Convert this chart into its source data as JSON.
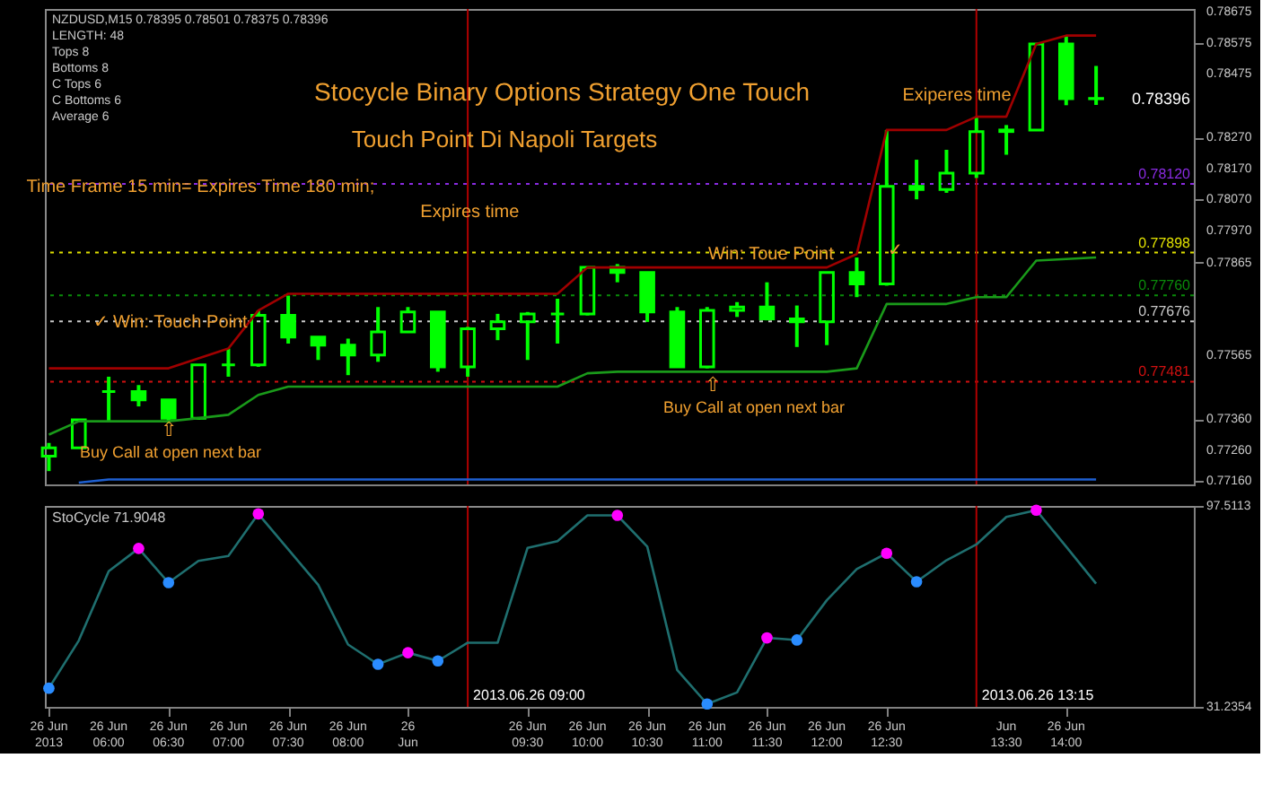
{
  "chart_data": [
    {
      "type": "candlestick",
      "title": "Stocycle Binary Options Strategy One Touch",
      "subtitle": "Touch Point Di Napoli Targets",
      "annotations": [
        "NZDUSD,M15  0.78395 0.78501 0.78375 0.78396",
        "LENGTH: 48",
        "Tops 8",
        "Bottoms 8",
        "C Tops 6",
        "C Bottoms 6",
        "Average 6",
        {
          "text": "Time Frame 15 min= Expires Time 180 min;",
          "x": "2013-06-26T06:46",
          "y": 0.7811
        },
        {
          "text": "Expires time",
          "x": "2013-06-26T09:01",
          "y": 0.7803
        },
        {
          "text": "✓  Win: Touch Point",
          "x": "2013-06-26T06:31",
          "y": 0.77674
        },
        {
          "text": "Win: Toue Point",
          "x": "2013-06-26T11:32",
          "y": 0.77893
        },
        {
          "text": "✓",
          "x": "2013-06-26T12:34",
          "y": 0.77904
        },
        "Exiperes time",
        "⇧",
        "Buy Call at open next bar",
        "⇧",
        "Buy Call at open next bar",
        "0.78396"
      ],
      "color": "#00ff00",
      "x": [
        "2013-06-26T05:30",
        "2013-06-26T05:45",
        "2013-06-26T06:00",
        "2013-06-26T06:15",
        "2013-06-26T06:30",
        "2013-06-26T06:45",
        "2013-06-26T07:00",
        "2013-06-26T07:15",
        "2013-06-26T07:30",
        "2013-06-26T07:45",
        "2013-06-26T08:00",
        "2013-06-26T08:15",
        "2013-06-26T08:30",
        "2013-06-26T08:45",
        "2013-06-26T09:00",
        "2013-06-26T09:15",
        "2013-06-26T09:30",
        "2013-06-26T09:45",
        "2013-06-26T10:00",
        "2013-06-26T10:15",
        "2013-06-26T10:30",
        "2013-06-26T10:45",
        "2013-06-26T11:00",
        "2013-06-26T11:15",
        "2013-06-26T11:30",
        "2013-06-26T11:45",
        "2013-06-26T12:00",
        "2013-06-26T12:15",
        "2013-06-26T12:30",
        "2013-06-26T12:45",
        "2013-06-26T13:00",
        "2013-06-26T13:15",
        "2013-06-26T13:30",
        "2013-06-26T13:45",
        "2013-06-26T14:00",
        "2013-06-26T14:15"
      ],
      "ohlc": [
        [
          0.7724,
          0.77283,
          0.77192,
          0.77267
        ],
        [
          0.77267,
          0.77358,
          0.77267,
          0.77358
        ],
        [
          0.77449,
          0.77497,
          0.77353,
          0.77449
        ],
        [
          0.77449,
          0.7747,
          0.77401,
          0.77422
        ],
        [
          0.77422,
          0.77422,
          0.77347,
          0.77363
        ],
        [
          0.77363,
          0.77535,
          0.77358,
          0.77535
        ],
        [
          0.77535,
          0.77588,
          0.77497,
          0.77535
        ],
        [
          0.77535,
          0.77711,
          0.77529,
          0.77695
        ],
        [
          0.77695,
          0.77759,
          0.77604,
          0.77625
        ],
        [
          0.77625,
          0.77625,
          0.77551,
          0.77599
        ],
        [
          0.77599,
          0.7762,
          0.77502,
          0.77567
        ],
        [
          0.77567,
          0.77722,
          0.77545,
          0.77642
        ],
        [
          0.77642,
          0.77722,
          0.77642,
          0.77706
        ],
        [
          0.77706,
          0.77706,
          0.77513,
          0.77529
        ],
        [
          0.77529,
          0.77658,
          0.77497,
          0.77652
        ],
        [
          0.77652,
          0.777,
          0.77615,
          0.77674
        ],
        [
          0.77674,
          0.77706,
          0.77551,
          0.777
        ],
        [
          0.777,
          0.77749,
          0.77604,
          0.777
        ],
        [
          0.777,
          0.7785,
          0.77695,
          0.7785
        ],
        [
          0.7785,
          0.77861,
          0.77802,
          0.77834
        ],
        [
          0.77834,
          0.77834,
          0.77674,
          0.77706
        ],
        [
          0.77706,
          0.77722,
          0.77529,
          0.77529
        ],
        [
          0.77529,
          0.77722,
          0.77524,
          0.77711
        ],
        [
          0.77711,
          0.77738,
          0.7769,
          0.77722
        ],
        [
          0.77722,
          0.77802,
          0.77679,
          0.77684
        ],
        [
          0.77684,
          0.77727,
          0.77593,
          0.77674
        ],
        [
          0.77674,
          0.77834,
          0.77599,
          0.77834
        ],
        [
          0.77834,
          0.77882,
          0.77754,
          0.77797
        ],
        [
          0.77797,
          0.78294,
          0.77791,
          0.78112
        ],
        [
          0.78112,
          0.78198,
          0.7807,
          0.78102
        ],
        [
          0.78102,
          0.7823,
          0.78091,
          0.78155
        ],
        [
          0.78155,
          0.78337,
          0.78139,
          0.78289
        ],
        [
          0.78289,
          0.7831,
          0.78214,
          0.78294
        ],
        [
          0.78294,
          0.78572,
          0.78294,
          0.78572
        ],
        [
          0.78572,
          0.78599,
          0.78374,
          0.78395
        ],
        [
          0.78395,
          0.78501,
          0.78375,
          0.78396
        ]
      ],
      "series": [
        {
          "type": "line",
          "color": "#a00000",
          "values": [
            0.77524,
            0.77524,
            0.77524,
            0.77524,
            0.77524,
            0.77556,
            0.77588,
            0.77711,
            0.77765,
            0.77765,
            0.77765,
            0.77765,
            0.77765,
            0.77765,
            0.77765,
            0.77765,
            0.77765,
            0.77765,
            0.7785,
            0.7785,
            0.7785,
            0.7785,
            0.7785,
            0.7785,
            0.7785,
            0.7785,
            0.7785,
            0.77893,
            0.78294,
            0.78294,
            0.78294,
            0.78337,
            0.78337,
            0.78572,
            0.78599,
            0.78599
          ]
        },
        {
          "type": "line",
          "color": "#1a9a1a",
          "values": [
            0.7731,
            0.77353,
            0.77353,
            0.77353,
            0.77353,
            0.77363,
            0.77374,
            0.77438,
            0.77465,
            0.77465,
            0.77465,
            0.77465,
            0.77465,
            0.77465,
            0.77465,
            0.77465,
            0.77465,
            0.77465,
            0.77508,
            0.77513,
            0.77513,
            0.77513,
            0.77513,
            0.77513,
            0.77513,
            0.77513,
            0.77513,
            0.77524,
            0.77732,
            0.77732,
            0.77732,
            0.77754,
            0.77754,
            0.77872,
            0.77877,
            0.77882
          ]
        },
        {
          "type": "line",
          "color": "#1e5fd0",
          "values": [
            null,
            0.77155,
            0.77165,
            0.77165,
            0.77165,
            0.77165,
            0.77165,
            0.77165,
            0.77165,
            0.77165,
            0.77165,
            0.77165,
            0.77165,
            0.77165,
            0.77165,
            0.77165,
            0.77165,
            0.77165,
            0.77165,
            0.77165,
            0.77165,
            0.77165,
            0.77165,
            0.77165,
            0.77165,
            0.77165,
            0.77165,
            0.77165,
            0.77165,
            0.77165,
            0.77165,
            0.77165,
            0.77165,
            0.77165,
            0.77165,
            0.77165
          ]
        }
      ],
      "ref_lines": [
        {
          "axis": "y",
          "value": 0.7812,
          "label": "0.78120",
          "color": "#8a2be2",
          "line_style": "dotted"
        },
        {
          "axis": "y",
          "value": 0.77898,
          "label": "0.77898",
          "color": "#e0e000",
          "line_style": "dotted"
        },
        {
          "axis": "y",
          "value": 0.7776,
          "label": "0.77760",
          "color": "#0a8a0a",
          "line_style": "dotted"
        },
        {
          "axis": "y",
          "value": 0.77676,
          "label": "0.77676",
          "color": "#c8c8c8",
          "line_style": "dotted"
        },
        {
          "axis": "y",
          "value": 0.77481,
          "label": "0.77481",
          "color": "#d01010",
          "line_style": "dotted"
        },
        {
          "axis": "x",
          "value": "2013-06-26T09:00",
          "color": "#b00000",
          "line_style": "solid"
        },
        {
          "axis": "x",
          "value": "2013-06-26T13:15",
          "color": "#b00000",
          "line_style": "solid"
        }
      ],
      "xlim": [
        "2013-06-26T05:28",
        "2013-06-26T15:04"
      ],
      "ylim": [
        0.77149,
        0.78685
      ],
      "yticks": [
        {
          "value": 0.7716,
          "label": "0.77160"
        },
        {
          "value": 0.7726,
          "label": "0.77260"
        },
        {
          "value": 0.7736,
          "label": "0.77360"
        },
        0.77565,
        0.77865,
        {
          "value": 0.7797,
          "label": "0.77970"
        },
        {
          "value": 0.7807,
          "label": "0.78070"
        },
        {
          "value": 0.7817,
          "label": "0.78170"
        },
        {
          "value": 0.7827,
          "label": "0.78270"
        },
        0.78475,
        0.78575,
        0.78675
      ],
      "tick_labels": "y"
    },
    {
      "type": "line",
      "title": "StoCycle 71.9048",
      "x": [
        "2013-06-26T05:30",
        "2013-06-26T05:45",
        "2013-06-26T06:00",
        "2013-06-26T06:15",
        "2013-06-26T06:30",
        "2013-06-26T06:45",
        "2013-06-26T07:00",
        "2013-06-26T07:15",
        "2013-06-26T07:30",
        "2013-06-26T07:45",
        "2013-06-26T08:00",
        "2013-06-26T08:15",
        "2013-06-26T08:30",
        "2013-06-26T08:45",
        "2013-06-26T09:00",
        "2013-06-26T09:15",
        "2013-06-26T09:30",
        "2013-06-26T09:45",
        "2013-06-26T10:00",
        "2013-06-26T10:15",
        "2013-06-26T10:30",
        "2013-06-26T10:45",
        "2013-06-26T11:00",
        "2013-06-26T11:15",
        "2013-06-26T11:30",
        "2013-06-26T11:45",
        "2013-06-26T12:00",
        "2013-06-26T12:15",
        "2013-06-26T12:30",
        "2013-06-26T12:45",
        "2013-06-26T13:00",
        "2013-06-26T13:15",
        "2013-06-26T13:30",
        "2013-06-26T13:45",
        "2013-06-26T14:00",
        "2013-06-26T14:15"
      ],
      "series": [
        {
          "type": "line",
          "color": "#1f6f6f",
          "values": [
            37.4,
            53.1,
            76.0,
            83.5,
            72.2,
            79.4,
            81.0,
            94.9,
            83.2,
            71.5,
            51.8,
            45.3,
            49.1,
            46.4,
            52.4,
            52.4,
            83.7,
            85.9,
            94.4,
            94.4,
            84.1,
            43.4,
            32.2,
            36.0,
            54.0,
            53.3,
            66.4,
            76.7,
            81.9,
            72.5,
            79.6,
            84.8,
            93.9,
            96.1,
            84.1,
            71.9
          ]
        },
        {
          "type": "scatter",
          "color": "#ff00ff",
          "marker": "circle",
          "values": [
            null,
            null,
            null,
            83.5,
            null,
            null,
            null,
            94.9,
            null,
            null,
            null,
            null,
            49.1,
            null,
            null,
            null,
            null,
            null,
            null,
            94.4,
            null,
            null,
            null,
            null,
            54.0,
            null,
            null,
            null,
            81.9,
            null,
            null,
            null,
            null,
            96.1,
            null,
            null
          ]
        },
        {
          "type": "scatter",
          "color": "#2a8cff",
          "marker": "circle",
          "values": [
            37.4,
            null,
            null,
            null,
            72.2,
            null,
            null,
            null,
            null,
            null,
            null,
            45.3,
            null,
            46.4,
            null,
            null,
            null,
            null,
            null,
            null,
            null,
            null,
            32.2,
            null,
            null,
            53.3,
            null,
            null,
            null,
            72.5,
            null,
            null,
            null,
            null,
            null,
            null
          ]
        }
      ],
      "ref_lines": [
        {
          "axis": "x",
          "value": "2013-06-26T09:00",
          "label": "2013.06.26 09:00",
          "color": "#b00000",
          "line_style": "solid"
        },
        {
          "axis": "x",
          "value": "2013-06-26T13:15",
          "label": "2013.06.26 13:15",
          "color": "#b00000",
          "line_style": "solid"
        }
      ],
      "xlim": [
        "2013-06-26T05:28",
        "2013-06-26T15:04"
      ],
      "xticks": [
        {
          "value": "2013-06-26T05:30",
          "label": "26 Jun 2013"
        },
        {
          "value": "2013-06-26T06:00",
          "label": "26 Jun 06:00"
        },
        {
          "value": "2013-06-26T06:30",
          "label": "26 Jun 06:30"
        },
        {
          "value": "2013-06-26T07:00",
          "label": "26 Jun 07:00"
        },
        {
          "value": "2013-06-26T07:30",
          "label": "26 Jun 07:30"
        },
        {
          "value": "2013-06-26T08:00",
          "label": "26 Jun 08:00"
        },
        {
          "value": "2013-06-26T08:30",
          "label": "26 Jun"
        },
        {
          "value": "2013-06-26T09:00",
          "label": null
        },
        {
          "value": "2013-06-26T09:30",
          "label": "26 Jun 09:30"
        },
        {
          "value": "2013-06-26T10:00",
          "label": "26 Jun 10:00"
        },
        {
          "value": "2013-06-26T10:30",
          "label": "26 Jun 10:30"
        },
        {
          "value": "2013-06-26T11:00",
          "label": "26 Jun 11:00"
        },
        {
          "value": "2013-06-26T11:30",
          "label": "26 Jun 11:30"
        },
        {
          "value": "2013-06-26T12:00",
          "label": "26 Jun 12:00"
        },
        {
          "value": "2013-06-26T12:30",
          "label": "26 Jun 12:30"
        },
        {
          "value": "2013-06-26T13:30",
          "label": "Jun 13:30"
        },
        {
          "value": "2013-06-26T14:00",
          "label": "26 Jun 14:00"
        }
      ],
      "ylim": [
        31.2354,
        97.5113
      ],
      "yticks": [
        31.2354,
        97.5113
      ]
    }
  ]
}
